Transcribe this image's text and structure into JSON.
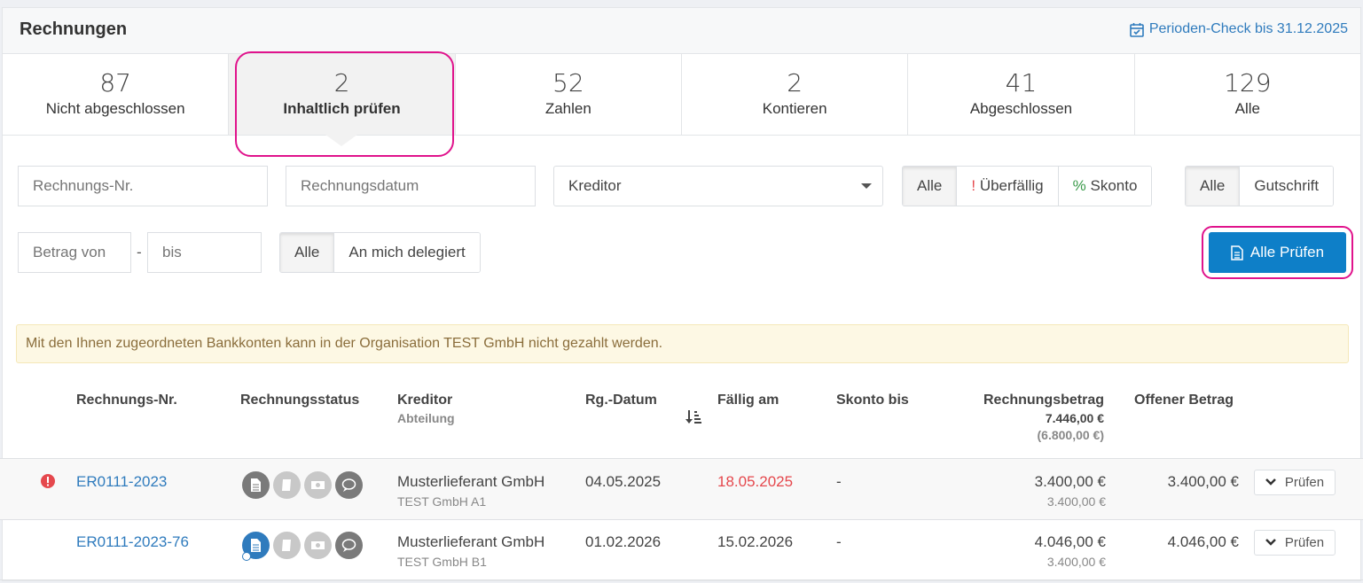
{
  "header": {
    "title": "Rechnungen",
    "period_check": "Perioden-Check bis 31.12.2025"
  },
  "tabs": [
    {
      "count": "87",
      "label": "Nicht abgeschlossen"
    },
    {
      "count": "2",
      "label": "Inhaltlich prüfen",
      "active": true
    },
    {
      "count": "52",
      "label": "Zahlen"
    },
    {
      "count": "2",
      "label": "Kontieren"
    },
    {
      "count": "41",
      "label": "Abgeschlossen"
    },
    {
      "count": "129",
      "label": "Alle"
    }
  ],
  "filters": {
    "invoice_no_placeholder": "Rechnungs-Nr.",
    "invoice_date_placeholder": "Rechnungsdatum",
    "creditor_select": "Kreditor",
    "due_group": [
      "Alle",
      "!",
      "Überfällig",
      "%",
      "Skonto"
    ],
    "type_group": [
      "Alle",
      "Gutschrift"
    ],
    "amount_from_placeholder": "Betrag von",
    "amount_sep": "-",
    "amount_to_placeholder": "bis",
    "delegation_group": [
      "Alle",
      "An mich delegiert"
    ],
    "check_all": "Alle Prüfen"
  },
  "alert": "Mit den Ihnen zugeordneten Bankkonten kann in der Organisation TEST GmbH nicht gezahlt werden.",
  "table": {
    "headers": {
      "invoice_no": "Rechnungs-Nr.",
      "status": "Rechnungsstatus",
      "creditor": "Kreditor",
      "department": "Abteilung",
      "date": "Rg.-Datum",
      "due": "Fällig am",
      "discount": "Skonto bis",
      "amount": "Rechnungsbetrag",
      "amount_total": "7.446,00 €",
      "amount_net_total": "(6.800,00 €)",
      "open": "Offener Betrag"
    },
    "rows": [
      {
        "invoice_no": "ER0111-2023",
        "warning": true,
        "creditor": "Musterlieferant GmbH",
        "department": "TEST GmbH A1",
        "date": "04.05.2025",
        "due": "18.05.2025",
        "due_overdue": true,
        "discount": "-",
        "amount": "3.400,00 €",
        "amount_net": "3.400,00 €",
        "open": "3.400,00 €",
        "action": "Prüfen",
        "doc_status_color": "#7a7a7a"
      },
      {
        "invoice_no": "ER0111-2023-76",
        "warning": false,
        "creditor": "Musterlieferant GmbH",
        "department": "TEST GmbH B1",
        "date": "01.02.2026",
        "due": "15.02.2026",
        "due_overdue": false,
        "discount": "-",
        "amount": "4.046,00 €",
        "amount_net": "3.400,00 €",
        "open": "4.046,00 €",
        "action": "Prüfen",
        "doc_status_color": "#2f7bbd"
      }
    ]
  },
  "colors": {
    "accent": "#0e7fc8",
    "link": "#2f7bbd",
    "overdue": "#e5484d",
    "highlight": "#e0138c"
  }
}
